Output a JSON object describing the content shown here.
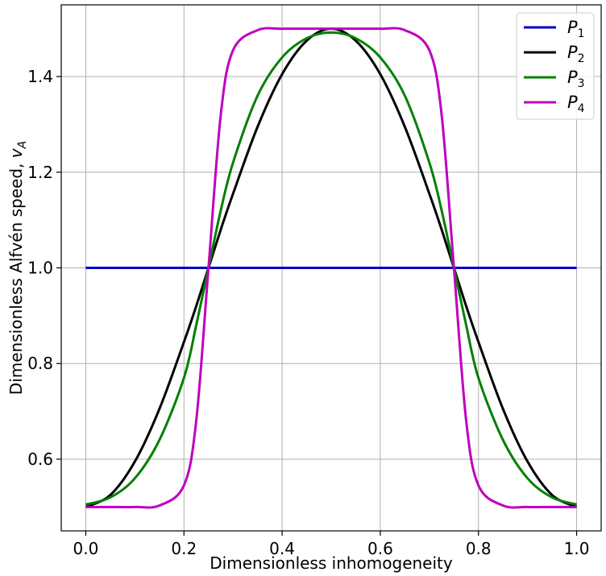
{
  "chart_data": {
    "type": "line",
    "title": "",
    "xlabel": "Dimensionless inhomogeneity",
    "ylabel_main": "Dimensionless Alfvén speed, ",
    "ylabel_var": "v",
    "ylabel_sub": "A",
    "xlim": [
      -0.05,
      1.05
    ],
    "ylim": [
      0.45,
      1.55
    ],
    "xticks": [
      0.0,
      0.2,
      0.4,
      0.6,
      0.8,
      1.0
    ],
    "xtick_labels": [
      "0.0",
      "0.2",
      "0.4",
      "0.6",
      "0.8",
      "1.0"
    ],
    "yticks": [
      0.6,
      0.8,
      1.0,
      1.2,
      1.4
    ],
    "ytick_labels": [
      "0.6",
      "0.8",
      "1.0",
      "1.2",
      "1.4"
    ],
    "grid": true,
    "legend_position": "top-right",
    "x": [
      0.0,
      0.05,
      0.1,
      0.15,
      0.2,
      0.225,
      0.25,
      0.275,
      0.3,
      0.35,
      0.4,
      0.45,
      0.5,
      0.55,
      0.6,
      0.65,
      0.7,
      0.725,
      0.75,
      0.775,
      0.8,
      0.85,
      0.9,
      0.95,
      1.0
    ],
    "series": [
      {
        "name": "P",
        "sub": "1",
        "color": "#0000cc",
        "values": [
          1.0,
          1.0,
          1.0,
          1.0,
          1.0,
          1.0,
          1.0,
          1.0,
          1.0,
          1.0,
          1.0,
          1.0,
          1.0,
          1.0,
          1.0,
          1.0,
          1.0,
          1.0,
          1.0,
          1.0,
          1.0,
          1.0,
          1.0,
          1.0,
          1.0
        ]
      },
      {
        "name": "P",
        "sub": "2",
        "color": "#000000",
        "values": [
          0.5,
          0.525,
          0.595,
          0.705,
          0.845,
          0.92,
          1.0,
          1.08,
          1.155,
          1.295,
          1.405,
          1.475,
          1.5,
          1.475,
          1.405,
          1.295,
          1.155,
          1.08,
          1.0,
          0.92,
          0.845,
          0.705,
          0.595,
          0.525,
          0.5
        ]
      },
      {
        "name": "P",
        "sub": "3",
        "color": "#008000",
        "values": [
          0.505,
          0.52,
          0.56,
          0.64,
          0.77,
          0.88,
          1.0,
          1.12,
          1.22,
          1.36,
          1.44,
          1.48,
          1.492,
          1.48,
          1.44,
          1.36,
          1.22,
          1.12,
          1.0,
          0.88,
          0.77,
          0.64,
          0.56,
          0.52,
          0.505
        ]
      },
      {
        "name": "P",
        "sub": "4",
        "color": "#bf00bf",
        "values": [
          0.5,
          0.5,
          0.5,
          0.503,
          0.545,
          0.68,
          1.0,
          1.32,
          1.455,
          1.497,
          1.5,
          1.5,
          1.5,
          1.5,
          1.5,
          1.497,
          1.455,
          1.32,
          1.0,
          0.68,
          0.545,
          0.503,
          0.5,
          0.5,
          0.5
        ]
      }
    ]
  }
}
